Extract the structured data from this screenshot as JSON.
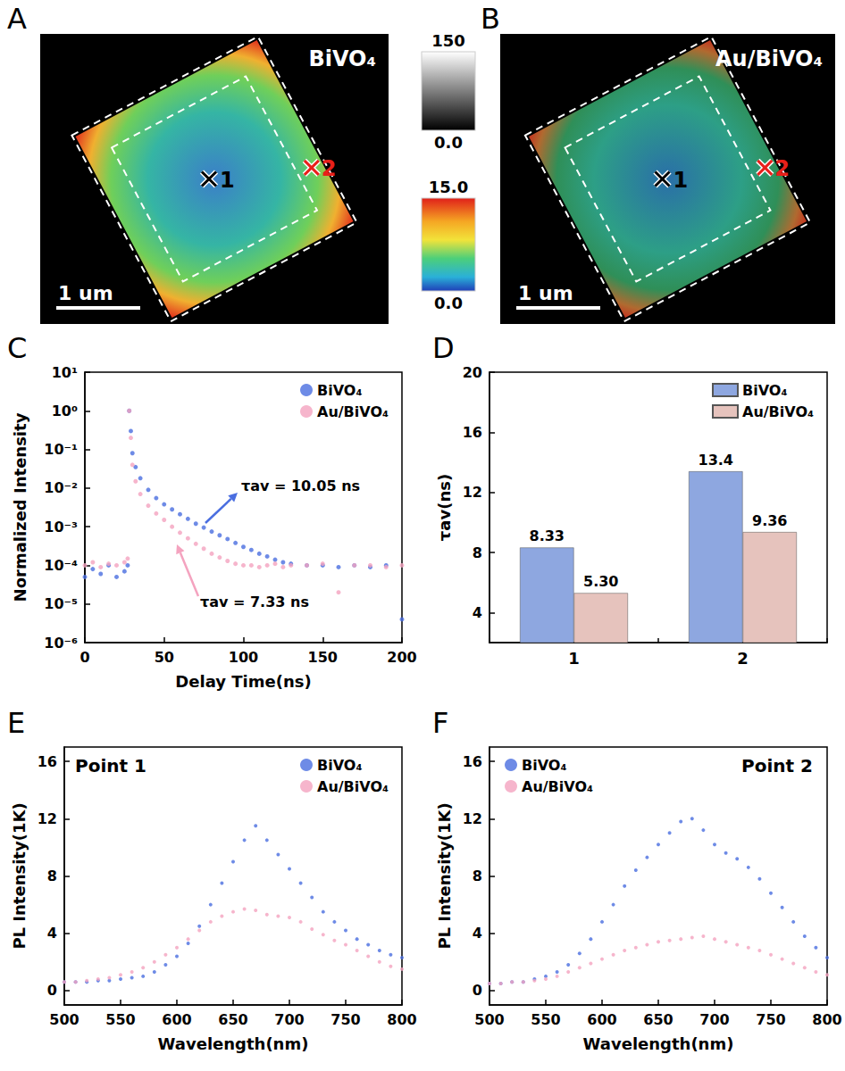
{
  "images": [
    {
      "panel_label": "A",
      "label": "BiVO₄",
      "markers": [
        "1",
        "2"
      ],
      "scale_bar": "1 um"
    },
    {
      "panel_label": "B",
      "label": "Au/BiVO₄",
      "markers": [
        "1",
        "2"
      ],
      "scale_bar": "1 um"
    }
  ],
  "colorbars": [
    {
      "range": [
        0,
        150
      ],
      "ticks": [
        150,
        {
          "value": 0,
          "label": "0.0"
        }
      ]
    },
    {
      "range": [
        0,
        15
      ],
      "ticks": [
        {
          "value": 15,
          "label": "15.0"
        },
        {
          "value": 0,
          "label": "0.0"
        }
      ]
    }
  ],
  "chart_data": [
    {
      "panel_label": "C",
      "type": "scatter",
      "log": "y",
      "xlabel": "Delay Time(ns)",
      "ylabel": "Normalized Intensity",
      "x": [
        0,
        5,
        10,
        15,
        20,
        25,
        27,
        28,
        29,
        30,
        32,
        35,
        40,
        45,
        50,
        55,
        60,
        65,
        70,
        75,
        80,
        85,
        90,
        95,
        100,
        105,
        110,
        115,
        120,
        125,
        130,
        140,
        150,
        160,
        170,
        180,
        190,
        200
      ],
      "series": [
        {
          "name": "BiVO₄",
          "color": "#4a6ee0",
          "values": [
            5e-05,
            8e-05,
            6e-05,
            0.0001,
            5e-05,
            7e-05,
            0.0001,
            1,
            0.3,
            0.08,
            0.035,
            0.018,
            0.009,
            0.0055,
            0.0038,
            0.0028,
            0.0021,
            0.0016,
            0.0012,
            0.00095,
            0.00075,
            0.0006,
            0.00048,
            0.00038,
            0.0003,
            0.00025,
            0.0002,
            0.00017,
            0.00014,
            0.00012,
            0.00011,
            0.0001,
            0.0001,
            9e-05,
            0.0001,
            9e-05,
            0.0001,
            4e-06
          ]
        },
        {
          "name": "Au/BiVO₄",
          "color": "#f4a3bf",
          "values": [
            0.0001,
            0.00012,
            9e-05,
            0.00011,
            0.0001,
            0.00012,
            0.00015,
            1,
            0.2,
            0.04,
            0.015,
            0.007,
            0.0035,
            0.0022,
            0.0015,
            0.001,
            0.0007,
            0.0005,
            0.00036,
            0.00027,
            0.0002,
            0.00016,
            0.00013,
            0.00011,
            0.0001,
            0.0001,
            9e-05,
            0.0001,
            0.00011,
            9e-05,
            0.0001,
            0.0001,
            0.00011,
            2e-05,
            0.0001,
            0.0001,
            9e-05,
            0.0001
          ]
        }
      ],
      "annotations": [
        "τav = 10.05 ns",
        "τav = 7.33 ns"
      ],
      "xlim": [
        0,
        200
      ],
      "xticks": [
        0,
        50,
        100,
        150,
        200
      ],
      "ylim": [
        1e-06,
        10
      ],
      "yticks": [
        {
          "value": 1e-06,
          "label": "10⁻⁶"
        },
        {
          "value": 1e-05,
          "label": "10⁻⁵"
        },
        {
          "value": 0.0001,
          "label": "10⁻⁴"
        },
        {
          "value": 0.001,
          "label": "10⁻³"
        },
        {
          "value": 0.01,
          "label": "10⁻²"
        },
        {
          "value": 0.1,
          "label": "10⁻¹"
        },
        {
          "value": 1,
          "label": "10⁰"
        },
        {
          "value": 10,
          "label": "10¹"
        }
      ],
      "legend": "upper right"
    },
    {
      "panel_label": "D",
      "type": "bar",
      "ylabel": "τav(ns)",
      "categories": [
        "1",
        "2"
      ],
      "series": [
        {
          "name": "BiVO₄",
          "color": "#8ea7e0",
          "values": [
            8.33,
            13.4
          ]
        },
        {
          "name": "Au/BiVO₄",
          "color": "#e6c3bd",
          "values": [
            5.3,
            9.36
          ],
          "value_labels": [
            "5.30",
            "9.36"
          ]
        }
      ],
      "ylim": [
        2,
        20
      ],
      "yticks": [
        4,
        8,
        12,
        16,
        20
      ],
      "data_labels": true,
      "legend": "upper right"
    },
    {
      "panel_label": "E",
      "type": "scatter",
      "xlabel": "Wavelength(nm)",
      "ylabel": "PL Intensity(1K)",
      "annotations": [
        "Point 1"
      ],
      "x": [
        500,
        510,
        520,
        530,
        540,
        550,
        560,
        570,
        580,
        590,
        600,
        610,
        620,
        630,
        640,
        650,
        660,
        670,
        680,
        690,
        700,
        710,
        720,
        730,
        740,
        750,
        760,
        770,
        780,
        790,
        800
      ],
      "series": [
        {
          "name": "BiVO₄",
          "color": "#4a6ee0",
          "values": [
            0.6,
            0.6,
            0.6,
            0.7,
            0.7,
            0.8,
            0.9,
            1.0,
            1.3,
            1.8,
            2.4,
            3.3,
            4.5,
            6.0,
            7.5,
            9.0,
            10.5,
            11.5,
            10.5,
            9.5,
            8.5,
            7.5,
            6.5,
            5.5,
            4.8,
            4.2,
            3.6,
            3.2,
            2.8,
            2.5,
            2.3
          ]
        },
        {
          "name": "Au/BiVO₄",
          "color": "#f4a3bf",
          "values": [
            0.6,
            0.6,
            0.7,
            0.8,
            0.9,
            1.1,
            1.3,
            1.6,
            2.0,
            2.5,
            3.0,
            3.6,
            4.2,
            4.8,
            5.2,
            5.5,
            5.7,
            5.6,
            5.3,
            5.2,
            5.1,
            4.8,
            4.3,
            3.9,
            3.5,
            3.2,
            2.8,
            2.4,
            2.0,
            1.7,
            1.5
          ]
        }
      ],
      "xlim": [
        500,
        800
      ],
      "xticks": [
        500,
        550,
        600,
        650,
        700,
        750,
        800
      ],
      "ylim": [
        -1,
        17
      ],
      "yticks": [
        0,
        4,
        8,
        12,
        16
      ],
      "legend": "upper right"
    },
    {
      "panel_label": "F",
      "type": "scatter",
      "xlabel": "Wavelength(nm)",
      "ylabel": "PL Intensity(1K)",
      "annotations": [
        "Point 2"
      ],
      "x": [
        500,
        510,
        520,
        530,
        540,
        550,
        560,
        570,
        580,
        590,
        600,
        610,
        620,
        630,
        640,
        650,
        660,
        670,
        680,
        690,
        700,
        710,
        720,
        730,
        740,
        750,
        760,
        770,
        780,
        790,
        800
      ],
      "series": [
        {
          "name": "BiVO₄",
          "color": "#4a6ee0",
          "values": [
            0.5,
            0.5,
            0.6,
            0.6,
            0.8,
            1.0,
            1.3,
            1.8,
            2.6,
            3.6,
            4.8,
            6.0,
            7.3,
            8.4,
            9.3,
            10.2,
            11.0,
            11.8,
            12.0,
            11.2,
            10.2,
            9.6,
            9.2,
            8.6,
            7.8,
            6.8,
            5.8,
            4.8,
            3.8,
            3.0,
            2.3
          ]
        },
        {
          "name": "Au/BiVO₄",
          "color": "#f4a3bf",
          "values": [
            0.5,
            0.5,
            0.6,
            0.6,
            0.7,
            0.8,
            1.0,
            1.3,
            1.6,
            1.9,
            2.2,
            2.5,
            2.8,
            3.0,
            3.2,
            3.4,
            3.5,
            3.6,
            3.7,
            3.8,
            3.6,
            3.4,
            3.2,
            3.0,
            2.8,
            2.5,
            2.2,
            1.9,
            1.6,
            1.3,
            1.1
          ]
        }
      ],
      "xlim": [
        500,
        800
      ],
      "xticks": [
        500,
        550,
        600,
        650,
        700,
        750,
        800
      ],
      "ylim": [
        -1,
        17
      ],
      "yticks": [
        0,
        4,
        8,
        12,
        16
      ],
      "legend": "upper left"
    }
  ]
}
